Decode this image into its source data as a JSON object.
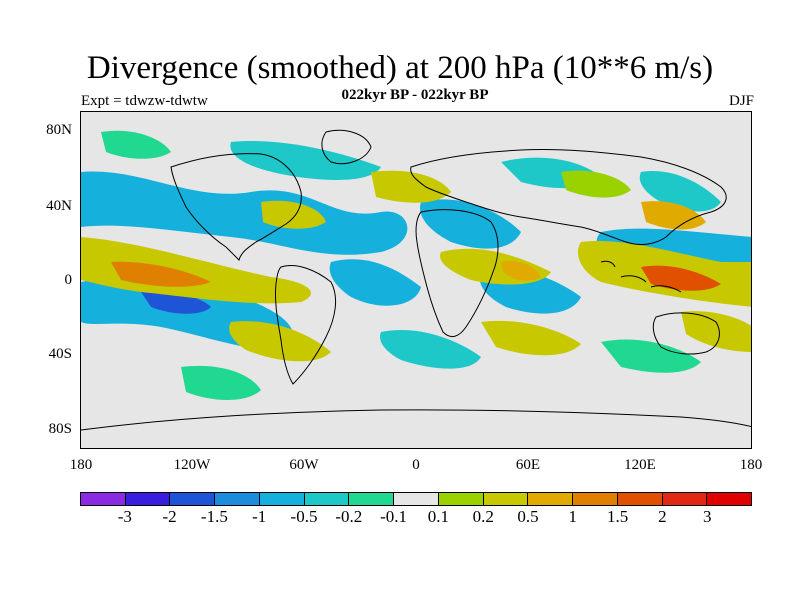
{
  "title": "Divergence (smoothed) at 200 hPa (10**6 m/s)",
  "subtitle": "022kyr BP - 022kyr BP",
  "experiment": "Expt = tdwzw-tdwtw",
  "season": "DJF",
  "latitude_labels": [
    "80N",
    "40N",
    "0",
    "40S",
    "80S"
  ],
  "longitude_labels": [
    "180",
    "120W",
    "60W",
    "0",
    "60E",
    "120E",
    "180"
  ],
  "colorbar": {
    "colors": [
      "#8a2be2",
      "#3a1ee0",
      "#1e55d6",
      "#1e8cdc",
      "#16b0dc",
      "#1ec8c8",
      "#20d890",
      "#e6e6e6",
      "#9ad200",
      "#c8c800",
      "#e0aa00",
      "#e08000",
      "#e05000",
      "#e02814",
      "#e00000"
    ],
    "labels": [
      "-3",
      "-2",
      "-1.5",
      "-1",
      "-0.5",
      "-0.2",
      "-0.1",
      "0.1",
      "0.2",
      "0.5",
      "1",
      "1.5",
      "2",
      "3"
    ]
  }
}
